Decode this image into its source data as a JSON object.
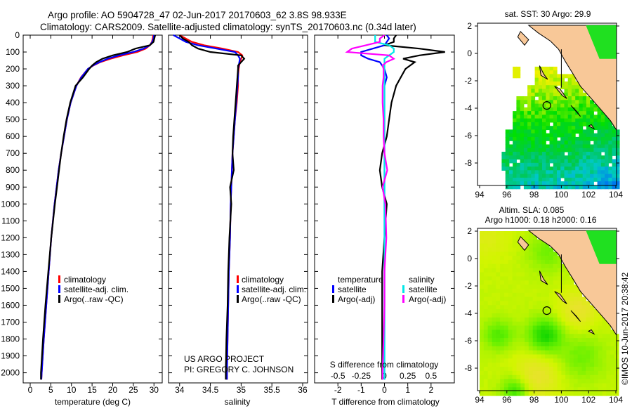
{
  "title": {
    "line1": "Argo profile: AO 5904728_47 02-Jun-2017 20170603_62 3.8S 98.933E",
    "line2": "Climatology: CARS2009. Satellite-adjusted climatology: synTS_20170603.nc (0.34d later)"
  },
  "colors": {
    "climatology": "#ff0000",
    "satellite": "#0000ff",
    "argo": "#000000",
    "s_satellite": "#00e8e8",
    "s_argo": "#ff00ff",
    "land": "#f8c898"
  },
  "depth_axis": {
    "ticks": [
      0,
      100,
      200,
      300,
      400,
      500,
      600,
      700,
      800,
      900,
      1000,
      1100,
      1200,
      1300,
      1400,
      1500,
      1600,
      1700,
      1800,
      1900,
      2000
    ],
    "range": [
      0,
      2060
    ]
  },
  "depths": [
    0,
    20,
    40,
    60,
    80,
    100,
    120,
    140,
    160,
    180,
    200,
    250,
    300,
    400,
    500,
    600,
    700,
    800,
    900,
    1000,
    1200,
    1400,
    1600,
    1800,
    2000,
    2040
  ],
  "chart_data": [
    {
      "type": "line",
      "panel": "temperature",
      "xlabel": "temperature (deg C)",
      "xticks": [
        "0",
        "5",
        "10",
        "15",
        "20",
        "25",
        "30"
      ],
      "xlim": [
        -1.7,
        32
      ],
      "legend": [
        "climatology",
        "satellite-adj. clim.",
        "Argo(..raw -QC)"
      ],
      "series": [
        {
          "name": "climatology",
          "values": [
            29.8,
            29.7,
            29.5,
            29.0,
            28.0,
            26.0,
            22.5,
            19.5,
            17.0,
            15.3,
            14.0,
            12.3,
            11.2,
            9.8,
            8.9,
            8.2,
            7.5,
            6.9,
            6.4,
            5.9,
            5.1,
            4.5,
            3.9,
            3.3,
            2.8,
            2.7
          ]
        },
        {
          "name": "satellite-adj. clim.",
          "values": [
            30.0,
            29.9,
            29.6,
            29.0,
            27.5,
            25.0,
            21.5,
            18.8,
            16.8,
            15.2,
            14.0,
            12.4,
            11.2,
            9.8,
            8.9,
            8.2,
            7.5,
            6.9,
            6.4,
            5.9,
            5.1,
            4.5,
            3.9,
            3.3,
            2.8,
            2.7
          ]
        },
        {
          "name": "Argo(..raw -QC)",
          "values": [
            30.3,
            30.1,
            29.9,
            29.0,
            25.5,
            23.5,
            20.0,
            17.5,
            16.0,
            15.0,
            14.3,
            12.8,
            11.0,
            9.7,
            8.8,
            8.1,
            7.5,
            7.0,
            6.5,
            6.0,
            5.1,
            4.4,
            3.7,
            3.1,
            2.6,
            2.6
          ]
        }
      ]
    },
    {
      "type": "line",
      "panel": "salinity",
      "xlabel": "salinity",
      "xticks": [
        "34",
        "34.5",
        "35",
        "35.5",
        "36"
      ],
      "xlim": [
        33.82,
        36.08
      ],
      "legend": [
        "climatology",
        "satellite-adj. clim.",
        "Argo(..raw -QC)"
      ],
      "annotation": [
        "US ARGO PROJECT",
        "PI: GREGORY C. JOHNSON"
      ],
      "series": [
        {
          "name": "climatology",
          "values": [
            34.0,
            34.1,
            34.2,
            34.4,
            34.7,
            34.95,
            35.02,
            35.0,
            34.98,
            34.97,
            34.96,
            34.95,
            34.95,
            34.93,
            34.9,
            34.88,
            34.86,
            34.85,
            34.84,
            34.83,
            34.82,
            34.8,
            34.79,
            34.78,
            34.77,
            34.77
          ]
        },
        {
          "name": "satellite-adj. clim.",
          "values": [
            33.9,
            34.0,
            34.1,
            34.3,
            34.6,
            34.9,
            34.95,
            34.98,
            34.97,
            34.96,
            34.95,
            34.95,
            34.94,
            34.92,
            34.9,
            34.88,
            34.86,
            34.85,
            34.84,
            34.83,
            34.82,
            34.8,
            34.79,
            34.78,
            34.77,
            34.77
          ]
        },
        {
          "name": "Argo(..raw -QC)",
          "values": [
            34.0,
            34.05,
            34.15,
            34.2,
            34.3,
            34.5,
            35.0,
            35.05,
            35.0,
            34.95,
            34.95,
            34.94,
            34.93,
            34.91,
            34.89,
            34.87,
            34.86,
            34.88,
            34.82,
            34.84,
            34.81,
            34.79,
            34.78,
            34.76,
            34.75,
            34.75
          ]
        }
      ]
    },
    {
      "type": "line",
      "panel": "difference",
      "xlabel": "T difference from climatology",
      "xlabel_top": "S difference from climatology",
      "xticks": [
        "-2",
        "-1",
        "0",
        "1",
        "2"
      ],
      "xlim": [
        -3,
        3
      ],
      "sticks": [
        "-0.5",
        "-0.25",
        "0",
        "0.25",
        "0.5"
      ],
      "slim": [
        -0.75,
        0.75
      ],
      "legend_t": {
        "title": "temperature",
        "items": [
          "satellite",
          "Argo(-adj)"
        ]
      },
      "legend_s": {
        "title": "salinity",
        "items": [
          "satellite",
          "Argo(-adj)"
        ]
      },
      "series": [
        {
          "name": "T satellite",
          "axis": "T",
          "values": [
            0.1,
            0.2,
            0.1,
            0,
            -0.5,
            -1.0,
            -1.0,
            -0.7,
            -0.2,
            -0.1,
            0,
            0.1,
            0,
            0,
            0,
            0,
            0,
            0,
            0,
            0,
            0,
            0,
            0,
            0,
            0,
            0
          ]
        },
        {
          "name": "T Argo(-adj)",
          "axis": "T",
          "values": [
            0.5,
            0.4,
            0.4,
            0,
            1.5,
            2.6,
            1.5,
            0.8,
            1.3,
            1.1,
            0.9,
            0.7,
            0.5,
            0.3,
            0.2,
            0.1,
            -0.1,
            -0.2,
            -0.1,
            0.1,
            0,
            -0.1,
            -0.1,
            -0.1,
            -0.1,
            -0.1
          ]
        },
        {
          "name": "S satellite",
          "axis": "S",
          "values": [
            -0.1,
            -0.1,
            -0.1,
            0.05,
            0.1,
            0.1,
            0.05,
            0,
            0,
            0,
            0,
            0,
            0,
            0,
            0,
            0,
            0,
            0,
            0,
            0,
            0,
            0,
            0,
            0,
            0,
            0
          ]
        },
        {
          "name": "S Argo(-adj)",
          "axis": "S",
          "values": [
            0,
            -0.05,
            -0.05,
            -0.2,
            -0.35,
            -0.4,
            0.05,
            0.1,
            0.02,
            -0.02,
            -0.01,
            -0.01,
            -0.02,
            -0.02,
            -0.01,
            -0.01,
            0,
            0.03,
            -0.02,
            0.01,
            0.02,
            0,
            0,
            -0.01,
            -0.02,
            -0.02
          ]
        }
      ]
    },
    {
      "type": "heatmap",
      "panel": "sst-map",
      "title": "sat. SST: 30 Argo: 29.9",
      "xticks": [
        "94",
        "96",
        "98",
        "100",
        "102",
        "104"
      ],
      "yticks": [
        "2",
        "0",
        "-2",
        "-4",
        "-6",
        "-8"
      ],
      "xlim": [
        94,
        104
      ],
      "ylim": [
        -9.75,
        2
      ],
      "argo_position": {
        "lon": 98.933,
        "lat": -3.8
      }
    },
    {
      "type": "heatmap",
      "panel": "sla-map",
      "title": "Altim. SLA: 0.085",
      "subtitle": "Argo h1000: 0.18 h2000: 0.16",
      "xticks": [
        "94",
        "96",
        "98",
        "100",
        "102",
        "104"
      ],
      "yticks": [
        "2",
        "0",
        "-2",
        "-4",
        "-6",
        "-8"
      ],
      "xlim": [
        94,
        104
      ],
      "ylim": [
        -9.75,
        2
      ],
      "argo_position": {
        "lon": 98.933,
        "lat": -3.8
      }
    }
  ],
  "footer": {
    "credit": "©IMOS 10-Jun-2017 20:38:42"
  }
}
